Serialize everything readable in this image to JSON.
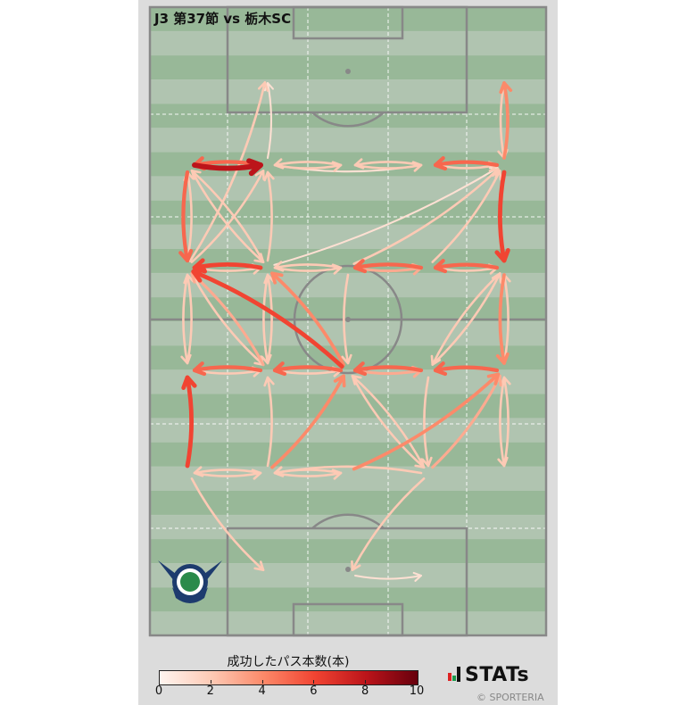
{
  "title": "J3 第37節 vs 栃木SC",
  "colorbar": {
    "label": "成功したパス本数(本)",
    "ticks": [
      "0",
      "2",
      "4",
      "6",
      "8",
      "10"
    ],
    "range": [
      0,
      10
    ],
    "colormap": "Reds"
  },
  "branding": {
    "stats": "STATs",
    "copyright": "© SPORTERIA"
  },
  "logo": "team-crest",
  "chart_data": {
    "type": "pass-network",
    "colors": {
      "pitch_dark": "#98b898",
      "pitch_light": "#b0c4b0",
      "lines": "#888888"
    },
    "zones": {
      "T2": [
        2,
        0
      ],
      "T5": [
        5,
        0
      ],
      "A1": [
        1,
        1
      ],
      "A2": [
        2,
        1
      ],
      "A3": [
        3,
        1
      ],
      "A4": [
        4,
        1
      ],
      "A5": [
        5,
        1
      ],
      "B1": [
        1,
        2
      ],
      "B2": [
        2,
        2
      ],
      "B3": [
        3,
        2
      ],
      "B4": [
        4,
        2
      ],
      "B5": [
        5,
        2
      ],
      "C1": [
        1,
        3
      ],
      "C2": [
        2,
        3
      ],
      "C3": [
        3,
        3
      ],
      "C4": [
        4,
        3
      ],
      "C5": [
        5,
        3
      ],
      "D1": [
        1,
        4
      ],
      "D2": [
        2,
        4
      ],
      "D3": [
        3,
        4
      ],
      "D4": [
        4,
        4
      ],
      "D5": [
        5,
        4
      ],
      "E2": [
        2,
        5
      ],
      "E3": [
        3,
        5
      ],
      "E4": [
        4,
        5
      ]
    },
    "passes": [
      [
        "A1",
        "A2",
        8
      ],
      [
        "A2",
        "A1",
        5
      ],
      [
        "A2",
        "A3",
        2
      ],
      [
        "A3",
        "A2",
        2
      ],
      [
        "A3",
        "A4",
        2
      ],
      [
        "A4",
        "A3",
        2
      ],
      [
        "A2",
        "A4",
        1
      ],
      [
        "A5",
        "A4",
        5
      ],
      [
        "A4",
        "A5",
        2
      ],
      [
        "A2",
        "T2",
        1
      ],
      [
        "B1",
        "T2",
        2
      ],
      [
        "A5",
        "T5",
        4
      ],
      [
        "T5",
        "A5",
        2
      ],
      [
        "A1",
        "B1",
        5
      ],
      [
        "B1",
        "A1",
        2
      ],
      [
        "A5",
        "B5",
        6
      ],
      [
        "B1",
        "A2",
        2
      ],
      [
        "B2",
        "A1",
        2
      ],
      [
        "A1",
        "B2",
        2
      ],
      [
        "B2",
        "A2",
        2
      ],
      [
        "B2",
        "B1",
        6
      ],
      [
        "B1",
        "B2",
        2
      ],
      [
        "B3",
        "B2",
        2
      ],
      [
        "B2",
        "B3",
        2
      ],
      [
        "B4",
        "B3",
        5
      ],
      [
        "B3",
        "B4",
        3
      ],
      [
        "B5",
        "B4",
        5
      ],
      [
        "B4",
        "B5",
        2
      ],
      [
        "B2",
        "A5",
        1
      ],
      [
        "B3",
        "A5",
        2
      ],
      [
        "B4",
        "A5",
        2
      ],
      [
        "C3",
        "B1",
        6
      ],
      [
        "C2",
        "B1",
        3
      ],
      [
        "B1",
        "C1",
        2
      ],
      [
        "C1",
        "B1",
        2
      ],
      [
        "B1",
        "C2",
        2
      ],
      [
        "B2",
        "C2",
        2
      ],
      [
        "C2",
        "B2",
        2
      ],
      [
        "C3",
        "B2",
        4
      ],
      [
        "B3",
        "C3",
        2
      ],
      [
        "C4",
        "B5",
        2
      ],
      [
        "B5",
        "C4",
        2
      ],
      [
        "C5",
        "B5",
        2
      ],
      [
        "B5",
        "C5",
        4
      ],
      [
        "C2",
        "C1",
        5
      ],
      [
        "C1",
        "C2",
        2
      ],
      [
        "C3",
        "C2",
        5
      ],
      [
        "C2",
        "C3",
        2
      ],
      [
        "C4",
        "C3",
        5
      ],
      [
        "C3",
        "C4",
        3
      ],
      [
        "C5",
        "C4",
        5
      ],
      [
        "D1",
        "C1",
        6
      ],
      [
        "D1",
        "D2",
        2
      ],
      [
        "D2",
        "D1",
        2
      ],
      [
        "D2",
        "D3",
        2
      ],
      [
        "D3",
        "D2",
        2
      ],
      [
        "D2",
        "C3",
        4
      ],
      [
        "D2",
        "C2",
        2
      ],
      [
        "D3",
        "C5",
        4
      ],
      [
        "D4",
        "C5",
        3
      ],
      [
        "C5",
        "D5",
        2
      ],
      [
        "D5",
        "C5",
        2
      ],
      [
        "D4",
        "C3",
        2
      ],
      [
        "C3",
        "D4",
        2
      ],
      [
        "D4",
        "D2",
        2
      ],
      [
        "C4",
        "D4",
        2
      ],
      [
        "D4",
        "E3",
        2
      ],
      [
        "E3",
        "E4",
        1
      ],
      [
        "D1",
        "E2",
        2
      ]
    ]
  }
}
